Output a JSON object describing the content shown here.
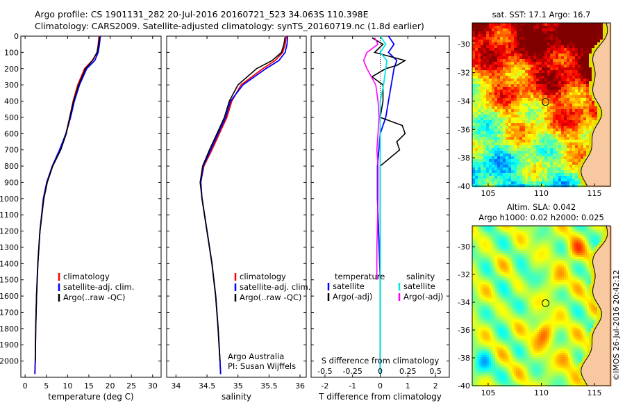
{
  "header": {
    "title_line1": "Argo profile: CS 1901131_282 20-Jul-2016 20160721_523 34.063S 110.398E",
    "title_line2": "Climatology: CARS2009. Satellite-adjusted climatology: synTS_20160719.nc (1.8d earlier)"
  },
  "watermark": "©IMOS 26-Jul-2016 20:42:12",
  "colors": {
    "climatology": "#ff0000",
    "satellite": "#0000ff",
    "argo": "#000000",
    "salinity_satellite": "#00e5e5",
    "salinity_argo": "#ff00ff",
    "land": "#f8c8a0"
  },
  "chart_data": [
    {
      "type": "line",
      "id": "temperature",
      "xlabel": "temperature (deg C)",
      "xlim": [
        -1,
        32
      ],
      "ylim": [
        2100,
        0
      ],
      "xticks": [
        0,
        5,
        10,
        15,
        20,
        25,
        30
      ],
      "yticks": [
        0,
        100,
        200,
        300,
        400,
        500,
        600,
        700,
        800,
        900,
        1000,
        1100,
        1200,
        1300,
        1400,
        1500,
        1600,
        1700,
        1800,
        1900,
        2000
      ],
      "legend": [
        "climatology",
        "satellite-adj. clim.",
        "Argo(..raw -QC)"
      ],
      "series": [
        {
          "name": "climatology",
          "color": "#ff0000",
          "y": [
            0,
            50,
            100,
            150,
            200,
            300,
            400,
            500,
            600,
            700,
            800,
            900,
            1000,
            1200,
            1400,
            1600,
            1800,
            2000,
            2080
          ],
          "values": [
            17.4,
            17.2,
            17.0,
            15.8,
            14.0,
            12.4,
            11.3,
            10.5,
            9.6,
            8.2,
            6.5,
            5.2,
            4.4,
            3.5,
            3.0,
            2.7,
            2.5,
            2.4,
            2.3
          ]
        },
        {
          "name": "satellite-adj. clim.",
          "color": "#0000ff",
          "y": [
            0,
            50,
            100,
            150,
            200,
            300,
            400,
            500,
            600,
            700,
            800,
            900,
            1000,
            1200,
            1400,
            1600,
            1800,
            2000,
            2080
          ],
          "values": [
            17.7,
            17.5,
            17.2,
            16.4,
            14.5,
            12.8,
            11.6,
            10.7,
            9.6,
            8.1,
            6.4,
            5.1,
            4.3,
            3.5,
            3.0,
            2.7,
            2.5,
            2.4,
            2.3
          ]
        },
        {
          "name": "Argo(..raw -QC)",
          "color": "#000000",
          "y": [
            5,
            50,
            100,
            150,
            200,
            300,
            400,
            500,
            600,
            700,
            800,
            900,
            1000,
            1200,
            1400,
            1600,
            1800,
            2000
          ],
          "values": [
            17.5,
            17.3,
            16.9,
            15.9,
            14.2,
            12.6,
            11.4,
            10.5,
            9.7,
            8.4,
            6.5,
            5.2,
            4.4,
            3.5,
            3.0,
            2.7,
            2.5,
            2.4
          ]
        }
      ]
    },
    {
      "type": "line",
      "id": "salinity",
      "xlabel": "salinity",
      "xlim": [
        33.85,
        36.1
      ],
      "ylim": [
        2100,
        0
      ],
      "xticks": [
        34,
        34.5,
        35,
        35.5,
        36
      ],
      "legend": [
        "climatology",
        "satellite-adj. clim.",
        "Argo(..raw -QC)"
      ],
      "annotation": [
        "Argo Australia",
        "PI: Susan Wijffels"
      ],
      "series": [
        {
          "name": "climatology",
          "color": "#ff0000",
          "y": [
            0,
            50,
            100,
            150,
            200,
            300,
            400,
            500,
            600,
            700,
            800,
            900,
            1000,
            1200,
            1400,
            1600,
            1800,
            2000,
            2080
          ],
          "values": [
            35.78,
            35.76,
            35.72,
            35.6,
            35.4,
            35.05,
            34.9,
            34.82,
            34.7,
            34.58,
            34.45,
            34.4,
            34.42,
            34.5,
            34.58,
            34.64,
            34.68,
            34.71,
            34.72
          ]
        },
        {
          "name": "satellite-adj. clim.",
          "color": "#0000ff",
          "y": [
            0,
            50,
            100,
            150,
            200,
            300,
            400,
            500,
            600,
            700,
            800,
            900,
            1000,
            1200,
            1400,
            1600,
            1800,
            2000,
            2080
          ],
          "values": [
            35.8,
            35.79,
            35.76,
            35.66,
            35.45,
            35.08,
            34.88,
            34.8,
            34.68,
            34.56,
            34.44,
            34.4,
            34.42,
            34.5,
            34.58,
            34.64,
            34.68,
            34.71,
            34.72
          ]
        },
        {
          "name": "Argo(..raw -QC)",
          "color": "#000000",
          "y": [
            5,
            50,
            100,
            150,
            200,
            300,
            400,
            500,
            600,
            700,
            800,
            900,
            1000,
            1200,
            1400,
            1600,
            1800,
            2000
          ],
          "values": [
            35.76,
            35.74,
            35.7,
            35.55,
            35.3,
            35.0,
            34.86,
            34.78,
            34.66,
            34.54,
            34.43,
            34.39,
            34.42,
            34.5,
            34.58,
            34.64,
            34.68,
            34.71
          ]
        }
      ]
    },
    {
      "type": "line",
      "id": "difference",
      "xlabel": "T difference from climatology",
      "xlabel_top": "S difference from climatology",
      "xlim": [
        -2.5,
        2.5
      ],
      "ylim": [
        2100,
        0
      ],
      "xticks": [
        -2,
        -1,
        0,
        1,
        2
      ],
      "s_ticks": [
        "-0.5",
        "-0.25",
        "0",
        "0.25",
        "0.5"
      ],
      "legend_temperature": {
        "title": "temperature",
        "items": [
          "satellite",
          "Argo(-adj)"
        ]
      },
      "legend_salinity": {
        "title": "salinity",
        "items": [
          "satellite",
          "Argo(-adj)"
        ]
      },
      "series": [
        {
          "name": "temperature satellite",
          "color": "#0000ff",
          "y": [
            0,
            50,
            100,
            150,
            200,
            300,
            400,
            500,
            600,
            800,
            1000,
            1500,
            2000,
            2080
          ],
          "values": [
            0.3,
            0.5,
            0.3,
            0.6,
            0.5,
            0.4,
            0.3,
            0.2,
            0.0,
            -0.1,
            -0.1,
            0.0,
            0.0,
            0.0
          ]
        },
        {
          "name": "temperature Argo(-adj)",
          "color": "#000000",
          "y": [
            10,
            50,
            100,
            150,
            180,
            200,
            250,
            300,
            400,
            500,
            550,
            600,
            650,
            700,
            800,
            900,
            1000,
            1500,
            2000
          ],
          "values": [
            -0.3,
            0.1,
            -0.2,
            0.9,
            0.6,
            0.2,
            -0.3,
            0.1,
            0.1,
            0.0,
            0.8,
            0.9,
            0.6,
            0.7,
            0.0,
            0.0,
            0.0,
            0.0,
            0.0
          ]
        },
        {
          "name": "salinity satellite",
          "color": "#00e5e5",
          "y": [
            0,
            50,
            100,
            150,
            200,
            300,
            400,
            600,
            1000,
            2000,
            2080
          ],
          "values": [
            0.0,
            0.05,
            0.0,
            0.06,
            0.05,
            0.03,
            0.0,
            0.0,
            0.0,
            0.0,
            0.0
          ]
        },
        {
          "name": "salinity Argo(-adj)",
          "color": "#ff00ff",
          "y": [
            10,
            50,
            100,
            150,
            200,
            250,
            300,
            400,
            500,
            600,
            700,
            800,
            1000,
            1300,
            1500
          ],
          "values": [
            -0.05,
            -0.02,
            -0.12,
            -0.15,
            -0.12,
            -0.08,
            -0.04,
            -0.02,
            -0.01,
            -0.02,
            -0.03,
            -0.02,
            -0.02,
            -0.03,
            -0.03
          ]
        }
      ]
    },
    {
      "type": "heatmap",
      "id": "sst_map",
      "title": "sat. SST: 17.1  Argo: 16.7",
      "xlim": [
        103.5,
        116.5
      ],
      "ylim": [
        -40,
        -28.5
      ],
      "xticks": [
        105,
        110,
        115
      ],
      "yticks": [
        -30,
        -32,
        -34,
        -36,
        -38,
        -40
      ],
      "marker": {
        "lon": 110.398,
        "lat": -34.063
      }
    },
    {
      "type": "heatmap",
      "id": "sla_map",
      "title": "Altim. SLA: 0.042",
      "subtitle": "Argo h1000: 0.02 h2000: 0.025",
      "xlim": [
        103.5,
        116.5
      ],
      "ylim": [
        -40,
        -28.5
      ],
      "xticks": [
        105,
        110,
        115
      ],
      "yticks": [
        -30,
        -32,
        -34,
        -36,
        -38,
        -40
      ],
      "marker": {
        "lon": 110.398,
        "lat": -34.063
      }
    }
  ]
}
